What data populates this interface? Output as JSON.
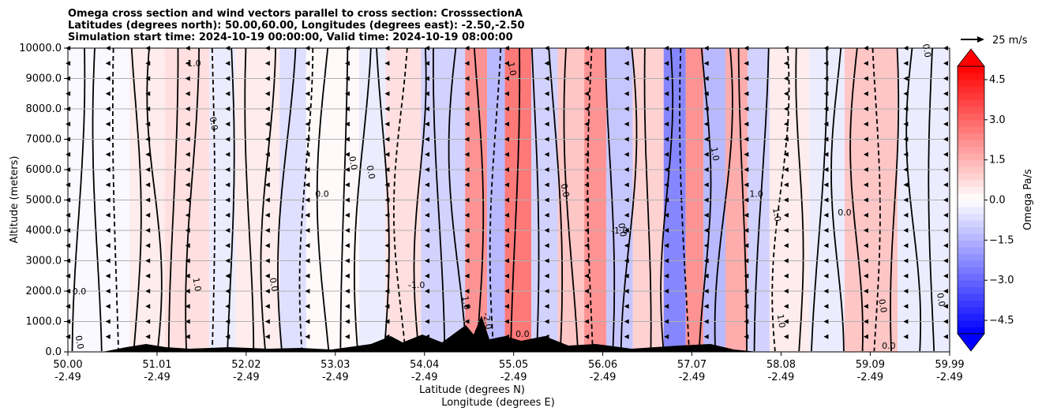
{
  "chart_data": {
    "type": "heatmap",
    "title_lines": [
      "Omega cross section and wind vectors parallel to cross section: CrosssectionA",
      "Latitudes (degrees north): 50.00,60.00, Longitudes (degrees east): -2.50,-2.50",
      "Simulation start time: 2024-10-19 00:00:00, Valid time: 2024-10-19 08:00:00"
    ],
    "xlabel_line1": "Latitude (degrees N)",
    "xlabel_line2": "Longitude (degrees E)",
    "ylabel": "Altitude (meters)",
    "x_range": [
      50.0,
      59.99
    ],
    "y_range": [
      0,
      10000
    ],
    "x_ticks": [
      {
        "value": 50.0,
        "lat": "50.00",
        "lon": "-2.49"
      },
      {
        "value": 51.01,
        "lat": "51.01",
        "lon": "-2.49"
      },
      {
        "value": 52.02,
        "lat": "52.02",
        "lon": "-2.49"
      },
      {
        "value": 53.03,
        "lat": "53.03",
        "lon": "-2.49"
      },
      {
        "value": 54.04,
        "lat": "54.04",
        "lon": "-2.49"
      },
      {
        "value": 55.05,
        "lat": "55.05",
        "lon": "-2.49"
      },
      {
        "value": 56.06,
        "lat": "56.06",
        "lon": "-2.49"
      },
      {
        "value": 57.07,
        "lat": "57.07",
        "lon": "-2.49"
      },
      {
        "value": 58.08,
        "lat": "58.08",
        "lon": "-2.49"
      },
      {
        "value": 59.09,
        "lat": "59.09",
        "lon": "-2.49"
      },
      {
        "value": 59.99,
        "lat": "59.99",
        "lon": "-2.49"
      }
    ],
    "y_ticks": [
      {
        "value": 0,
        "label": "0.0"
      },
      {
        "value": 1000,
        "label": "1000.0"
      },
      {
        "value": 2000,
        "label": "2000.0"
      },
      {
        "value": 3000,
        "label": "3000.0"
      },
      {
        "value": 4000,
        "label": "4000.0"
      },
      {
        "value": 5000,
        "label": "5000.0"
      },
      {
        "value": 6000,
        "label": "6000.0"
      },
      {
        "value": 7000,
        "label": "7000.0"
      },
      {
        "value": 8000,
        "label": "8000.0"
      },
      {
        "value": 9000,
        "label": "9000.0"
      },
      {
        "value": 10000,
        "label": "10000.0"
      }
    ],
    "grid": "horizontal",
    "colorbar": {
      "label": "Omega Pa/s",
      "range": [
        -5.0,
        5.0
      ],
      "step": 0.25,
      "ticks": [
        {
          "value": 4.5,
          "label": "4.5"
        },
        {
          "value": 3.0,
          "label": "3.0"
        },
        {
          "value": 1.5,
          "label": "1.5"
        },
        {
          "value": 0.0,
          "label": "0.0"
        },
        {
          "value": -1.5,
          "label": "−1.5"
        },
        {
          "value": -3.0,
          "label": "−3.0"
        },
        {
          "value": -4.5,
          "label": "−4.5"
        }
      ]
    },
    "quiver_key_label": "25 m/s",
    "omega_bands": [
      {
        "from": 50.0,
        "to": 50.7,
        "value": -0.1
      },
      {
        "from": 50.7,
        "to": 51.1,
        "value": 0.3
      },
      {
        "from": 51.1,
        "to": 51.6,
        "value": 0.6
      },
      {
        "from": 51.6,
        "to": 51.9,
        "value": -0.4
      },
      {
        "from": 51.9,
        "to": 52.4,
        "value": 0.4
      },
      {
        "from": 52.4,
        "to": 52.7,
        "value": -0.6
      },
      {
        "from": 52.7,
        "to": 53.3,
        "value": 0.2
      },
      {
        "from": 53.3,
        "to": 53.6,
        "value": -0.5
      },
      {
        "from": 53.6,
        "to": 54.0,
        "value": 0.5
      },
      {
        "from": 54.0,
        "to": 54.5,
        "value": -0.8
      },
      {
        "from": 54.5,
        "to": 54.75,
        "value": 2.0
      },
      {
        "from": 54.75,
        "to": 54.95,
        "value": -1.5
      },
      {
        "from": 54.95,
        "to": 55.25,
        "value": 2.5
      },
      {
        "from": 55.25,
        "to": 55.55,
        "value": -1.0
      },
      {
        "from": 55.55,
        "to": 55.85,
        "value": 1.2
      },
      {
        "from": 55.85,
        "to": 56.1,
        "value": 2.0
      },
      {
        "from": 56.1,
        "to": 56.4,
        "value": -1.2
      },
      {
        "from": 56.4,
        "to": 56.75,
        "value": 0.8
      },
      {
        "from": 56.75,
        "to": 57.0,
        "value": -2.5
      },
      {
        "from": 57.0,
        "to": 57.2,
        "value": 2.2
      },
      {
        "from": 57.2,
        "to": 57.45,
        "value": -1.5
      },
      {
        "from": 57.45,
        "to": 57.7,
        "value": 1.5
      },
      {
        "from": 57.7,
        "to": 57.95,
        "value": -0.8
      },
      {
        "from": 57.95,
        "to": 58.4,
        "value": 0.4
      },
      {
        "from": 58.4,
        "to": 58.8,
        "value": -0.5
      },
      {
        "from": 58.8,
        "to": 59.4,
        "value": 1.0
      },
      {
        "from": 59.4,
        "to": 59.99,
        "value": -0.3
      }
    ],
    "contour_labels": [
      {
        "text": "0.0",
        "x": 50.13,
        "y": 1900
      },
      {
        "text": "0.0",
        "x": 50.1,
        "y": 300
      },
      {
        "text": "1.0",
        "x": 51.43,
        "y": 2200
      },
      {
        "text": "1.0",
        "x": 51.43,
        "y": 9400
      },
      {
        "text": "0.0",
        "x": 51.62,
        "y": 7500
      },
      {
        "text": "0.0",
        "x": 52.3,
        "y": 2200
      },
      {
        "text": "0.0",
        "x": 52.88,
        "y": 5100
      },
      {
        "text": "0.0",
        "x": 53.2,
        "y": 6200
      },
      {
        "text": "0.0",
        "x": 53.4,
        "y": 5900
      },
      {
        "text": "-1.0",
        "x": 53.95,
        "y": 2100
      },
      {
        "text": "1.0",
        "x": 54.48,
        "y": 1600
      },
      {
        "text": "-2.0",
        "x": 54.72,
        "y": 1000
      },
      {
        "text": "0.0",
        "x": 55.15,
        "y": 500
      },
      {
        "text": "1.0",
        "x": 55.0,
        "y": 9300
      },
      {
        "text": "0.0",
        "x": 55.6,
        "y": 5300
      },
      {
        "text": "-1.0",
        "x": 56.25,
        "y": 3900
      },
      {
        "text": "0.0",
        "x": 56.25,
        "y": 4000
      },
      {
        "text": "1.0",
        "x": 57.3,
        "y": 6500
      },
      {
        "text": "1.0",
        "x": 57.8,
        "y": 5100
      },
      {
        "text": "1.0",
        "x": 58.0,
        "y": 4500
      },
      {
        "text": "1.0",
        "x": 58.05,
        "y": 1000
      },
      {
        "text": "0.0",
        "x": 58.8,
        "y": 4500
      },
      {
        "text": "0.0",
        "x": 59.2,
        "y": 1500
      },
      {
        "text": "0.0",
        "x": 59.86,
        "y": 1700
      },
      {
        "text": "0.0",
        "x": 59.3,
        "y": 100
      },
      {
        "text": "0.0",
        "x": 59.7,
        "y": 9900
      }
    ]
  }
}
